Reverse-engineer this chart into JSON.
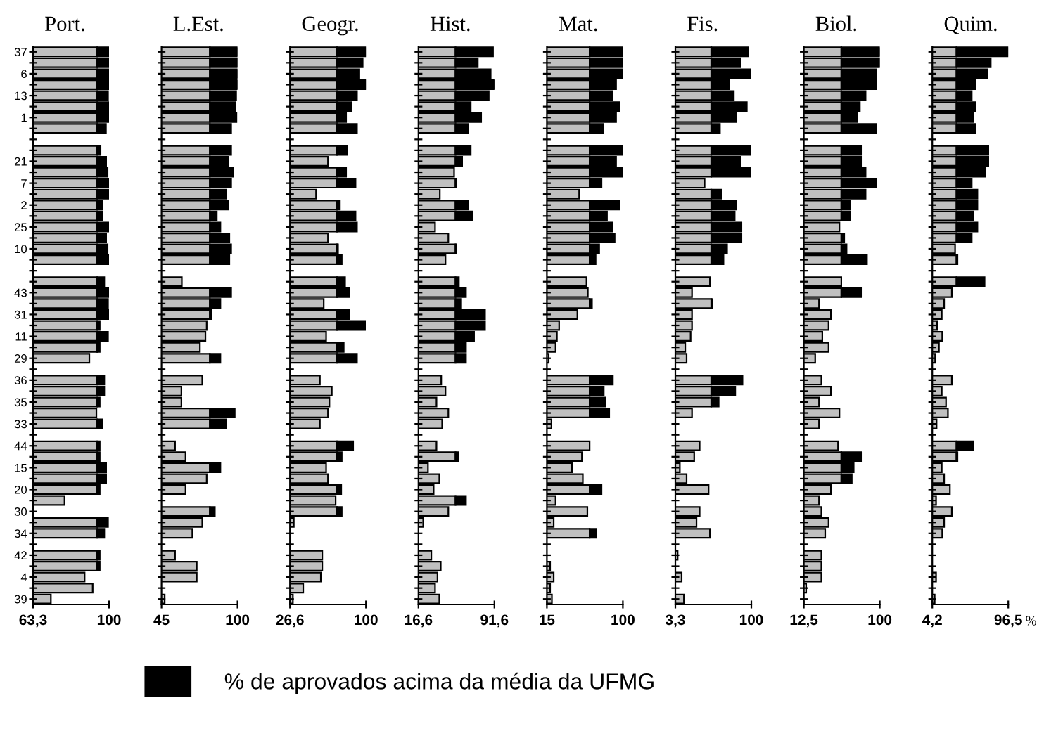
{
  "chart_data": [
    {
      "type": "bar",
      "orientation": "horizontal",
      "stacked": true,
      "title": "Port.",
      "legend": "bottom",
      "categories": [
        "37",
        null,
        "6",
        null,
        "13",
        null,
        "1",
        null,
        null,
        null,
        "21",
        null,
        "7",
        null,
        "2",
        null,
        "25",
        null,
        "10",
        null,
        null,
        null,
        "43",
        null,
        "31",
        null,
        "11",
        null,
        "29",
        null,
        "36",
        null,
        "35",
        null,
        "33",
        null,
        "44",
        null,
        "15",
        null,
        "20",
        null,
        "30",
        null,
        "34",
        null,
        "42",
        null,
        "4",
        null,
        "39"
      ],
      "xlim": [
        63.3,
        100
      ],
      "xticks": [
        {
          "value": 63.3,
          "label": "63,3"
        },
        100
      ],
      "series": [
        {
          "color": "#c0c0c0",
          "values": [
            94.3,
            94.3,
            94.3,
            94.3,
            94.3,
            94.3,
            94.3,
            94.3,
            null,
            94.3,
            94.3,
            94.3,
            94.3,
            94.3,
            94.3,
            94.3,
            94.3,
            94.3,
            94.3,
            94.3,
            null,
            94.3,
            94.3,
            94.3,
            94.3,
            94.3,
            94.3,
            94.3,
            90.5,
            null,
            94.3,
            94.3,
            94.3,
            93.9,
            94.3,
            null,
            94.3,
            94.3,
            94.3,
            94.3,
            94.3,
            78.5,
            null,
            94.3,
            94.3,
            null,
            94.3,
            94.3,
            88.2,
            92.1,
            71.9
          ]
        },
        {
          "name": "% de aprovados acima da média da UFMG",
          "color": "#000000",
          "base": [
            94.3,
            94.3,
            94.3,
            94.3,
            94.3,
            94.3,
            94.3,
            94.3,
            null,
            94.3,
            94.3,
            94.3,
            94.3,
            94.3,
            94.3,
            94.3,
            94.3,
            94.3,
            94.3,
            94.3,
            null,
            94.3,
            94.3,
            94.3,
            94.3,
            94.3,
            94.3,
            94.3,
            null,
            null,
            94.3,
            94.3,
            94.3,
            null,
            94.3,
            null,
            94.3,
            94.3,
            94.3,
            94.3,
            94.3,
            null,
            null,
            94.3,
            94.3,
            null,
            94.3,
            94.3,
            null,
            null,
            null
          ],
          "values": [
            5.7,
            5.7,
            5.7,
            5.7,
            5.2,
            5.7,
            5.7,
            4.2,
            null,
            1.6,
            4.3,
            5,
            5.7,
            5.7,
            2.5,
            2.5,
            5.7,
            4.3,
            5,
            5.7,
            null,
            3.4,
            5.7,
            5.2,
            5.7,
            1.2,
            5.2,
            1.2,
            null,
            null,
            3.4,
            3.4,
            1.2,
            null,
            2.5,
            null,
            1.2,
            1.2,
            4.3,
            4.3,
            1.2,
            null,
            null,
            5.2,
            3.4,
            null,
            1.2,
            1.2,
            null,
            null,
            null
          ]
        }
      ]
    },
    {
      "type": "bar",
      "orientation": "horizontal",
      "stacked": true,
      "title": "L.Est.",
      "tick_labels": "x",
      "categories": [
        "37",
        null,
        "6",
        null,
        "13",
        null,
        "1",
        null,
        null,
        null,
        "21",
        null,
        "7",
        null,
        "2",
        null,
        "25",
        null,
        "10",
        null,
        null,
        null,
        "43",
        null,
        "31",
        null,
        "11",
        null,
        "29",
        null,
        "36",
        null,
        "35",
        null,
        "33",
        null,
        "44",
        null,
        "15",
        null,
        "20",
        null,
        "30",
        null,
        "34",
        null,
        "42",
        null,
        "4",
        null,
        "39"
      ],
      "xlim": [
        45,
        100
      ],
      "xticks": [
        45,
        100
      ],
      "series": [
        {
          "color": "#c0c0c0",
          "values": [
            80,
            80,
            80,
            80,
            80,
            80,
            80,
            80,
            null,
            80,
            80,
            80,
            80,
            80,
            80,
            80,
            80,
            80,
            80,
            80,
            null,
            59.7,
            80,
            80,
            80,
            77.7,
            76.8,
            72.8,
            80,
            null,
            74.5,
            59.4,
            59.4,
            80,
            80,
            null,
            54.8,
            62.4,
            80,
            77.7,
            62.4,
            null,
            80,
            74.5,
            67.3,
            null,
            54.8,
            70.5,
            70.5,
            null,
            47.3
          ]
        },
        {
          "color": "#000000",
          "base": [
            80,
            80,
            80,
            80,
            80,
            80,
            80,
            80,
            null,
            80,
            80,
            80,
            80,
            80,
            80,
            80,
            80,
            80,
            80,
            80,
            null,
            null,
            80,
            80,
            80,
            null,
            null,
            null,
            80,
            null,
            null,
            null,
            null,
            80,
            80,
            null,
            null,
            null,
            80,
            null,
            null,
            null,
            80,
            null,
            null,
            null,
            null,
            null,
            null,
            null,
            null
          ],
          "values": [
            20,
            20,
            20,
            20,
            19,
            18.4,
            19.3,
            15.4,
            null,
            15.4,
            13.1,
            16.7,
            15.4,
            11.5,
            13.1,
            5,
            7.6,
            14.1,
            15.4,
            14.1,
            null,
            null,
            15.4,
            7.6,
            1,
            null,
            null,
            null,
            7.6,
            null,
            null,
            null,
            null,
            18,
            11.5,
            null,
            null,
            null,
            7.6,
            null,
            null,
            null,
            3.6,
            null,
            null,
            null,
            null,
            null,
            null,
            null,
            null
          ]
        }
      ]
    },
    {
      "type": "bar",
      "orientation": "horizontal",
      "stacked": true,
      "title": "Geogr.",
      "tick_labels": "x",
      "categories": [
        "37",
        null,
        "6",
        null,
        "13",
        null,
        "1",
        null,
        null,
        null,
        "21",
        null,
        "7",
        null,
        "2",
        null,
        "25",
        null,
        "10",
        null,
        null,
        null,
        "43",
        null,
        "31",
        null,
        "11",
        null,
        "29",
        null,
        "36",
        null,
        "35",
        null,
        "33",
        null,
        "44",
        null,
        "15",
        null,
        "20",
        null,
        "30",
        null,
        "34",
        null,
        "42",
        null,
        "4",
        null,
        "39"
      ],
      "xlim": [
        26.6,
        100
      ],
      "xticks": [
        {
          "value": 26.6,
          "label": "26,6"
        },
        100
      ],
      "series": [
        {
          "color": "#c0c0c0",
          "values": [
            72,
            72,
            72,
            72,
            72,
            72,
            72,
            72,
            null,
            72,
            63.3,
            72,
            72,
            51.8,
            72,
            72,
            72,
            63.3,
            72,
            72,
            null,
            72,
            72,
            59.2,
            72,
            72,
            61.5,
            72,
            72,
            null,
            55.5,
            67,
            64.7,
            63.3,
            55.5,
            null,
            72,
            72,
            61.5,
            63.3,
            72,
            70.7,
            72,
            30.3,
            null,
            null,
            57.8,
            57.8,
            56.4,
            39.4,
            29.4
          ]
        },
        {
          "color": "#000000",
          "base": [
            72,
            72,
            72,
            72,
            72,
            72,
            72,
            72,
            null,
            72,
            null,
            72,
            72,
            null,
            72,
            72,
            72,
            null,
            72,
            72,
            null,
            72,
            72,
            null,
            72,
            72,
            null,
            72,
            72,
            null,
            null,
            null,
            null,
            null,
            null,
            null,
            72,
            72,
            null,
            null,
            72,
            null,
            72,
            null,
            null,
            null,
            null,
            null,
            null,
            null,
            null
          ],
          "values": [
            28,
            24.8,
            21.6,
            28,
            19.3,
            13.8,
            8.8,
            19.3,
            null,
            10.1,
            null,
            8.8,
            17.9,
            null,
            2.8,
            17.9,
            19.3,
            null,
            1,
            4.6,
            null,
            7.8,
            12,
            null,
            12,
            27.1,
            null,
            6.5,
            19.3,
            null,
            null,
            null,
            null,
            null,
            null,
            null,
            15.6,
            4.6,
            null,
            null,
            4.1,
            null,
            4.6,
            null,
            null,
            null,
            null,
            null,
            null,
            null,
            null
          ]
        }
      ]
    },
    {
      "type": "bar",
      "orientation": "horizontal",
      "stacked": true,
      "title": "Hist.",
      "tick_labels": "x",
      "categories": [
        "37",
        null,
        "6",
        null,
        "13",
        null,
        "1",
        null,
        null,
        null,
        "21",
        null,
        "7",
        null,
        "2",
        null,
        "25",
        null,
        "10",
        null,
        null,
        null,
        "43",
        null,
        "31",
        null,
        "11",
        null,
        "29",
        null,
        "36",
        null,
        "35",
        null,
        "33",
        null,
        "44",
        null,
        "15",
        null,
        "20",
        null,
        "30",
        null,
        "34",
        null,
        "42",
        null,
        "4",
        null,
        "39"
      ],
      "xlim": [
        16.6,
        91.6
      ],
      "xticks": [
        {
          "value": 16.6,
          "label": "16,6"
        },
        {
          "value": 91.6,
          "label": "91,6"
        }
      ],
      "series": [
        {
          "color": "#c0c0c0",
          "values": [
            53.2,
            53.2,
            53.2,
            53.2,
            53.2,
            53.2,
            53.2,
            53.2,
            null,
            53.2,
            53.2,
            51.8,
            53.2,
            37.7,
            53.2,
            53.2,
            33,
            46.1,
            53.2,
            43.3,
            null,
            53.2,
            53.2,
            53.2,
            53.2,
            53.2,
            53.2,
            53.2,
            53.2,
            null,
            39.1,
            43.3,
            34.4,
            46.1,
            40,
            null,
            34.4,
            53.2,
            26,
            37.2,
            31.6,
            53.2,
            46.1,
            21.3,
            null,
            null,
            29.3,
            38.6,
            35.4,
            33,
            37.2
          ]
        },
        {
          "color": "#000000",
          "base": [
            53.2,
            53.2,
            53.2,
            53.2,
            53.2,
            53.2,
            53.2,
            53.2,
            null,
            53.2,
            53.2,
            null,
            53.2,
            null,
            53.2,
            53.2,
            null,
            null,
            53.2,
            null,
            null,
            53.2,
            53.2,
            53.2,
            53.2,
            53.2,
            53.2,
            53.2,
            53.2,
            null,
            null,
            null,
            null,
            null,
            null,
            null,
            null,
            53.2,
            null,
            null,
            null,
            53.2,
            null,
            null,
            null,
            null,
            null,
            null,
            null,
            null,
            null
          ],
          "values": [
            37,
            22,
            34.7,
            38.4,
            32.8,
            15,
            25.3,
            12.6,
            null,
            15,
            6.5,
            null,
            0.9,
            null,
            12.6,
            16.4,
            null,
            null,
            0.9,
            null,
            null,
            3.3,
            10.3,
            5.6,
            29.1,
            29.1,
            18.3,
            10.3,
            10.3,
            null,
            null,
            null,
            null,
            null,
            null,
            null,
            null,
            2.8,
            null,
            null,
            null,
            10.3,
            null,
            null,
            null,
            null,
            null,
            null,
            null,
            null,
            null
          ]
        }
      ]
    },
    {
      "type": "bar",
      "orientation": "horizontal",
      "stacked": true,
      "title": "Mat.",
      "tick_labels": "x",
      "categories": [
        "37",
        null,
        "6",
        null,
        "13",
        null,
        "1",
        null,
        null,
        null,
        "21",
        null,
        "7",
        null,
        "2",
        null,
        "25",
        null,
        "10",
        null,
        null,
        null,
        "43",
        null,
        "31",
        null,
        "11",
        null,
        "29",
        null,
        "36",
        null,
        "35",
        null,
        "33",
        null,
        "44",
        null,
        "15",
        null,
        "20",
        null,
        "30",
        null,
        "34",
        null,
        "42",
        null,
        "4",
        null,
        "39"
      ],
      "xlim": [
        15,
        100
      ],
      "xticks": [
        15,
        100
      ],
      "series": [
        {
          "color": "#c0c0c0",
          "values": [
            62.8,
            62.8,
            62.8,
            62.8,
            62.8,
            62.8,
            62.8,
            62.8,
            null,
            62.8,
            62.8,
            62.8,
            62.8,
            51.1,
            62.8,
            62.8,
            62.8,
            62.8,
            62.8,
            62.8,
            null,
            59.3,
            60.8,
            62.8,
            49.1,
            28.7,
            26.2,
            24.7,
            17,
            null,
            62.8,
            62.8,
            62.8,
            62.8,
            20.1,
            null,
            62.8,
            54.2,
            43,
            55.2,
            62.8,
            24.7,
            60.3,
            22.6,
            62.8,
            null,
            null,
            18.6,
            22.6,
            18.6,
            20.6
          ]
        },
        {
          "color": "#000000",
          "base": [
            62.8,
            62.8,
            62.8,
            62.8,
            62.8,
            62.8,
            62.8,
            62.8,
            null,
            62.8,
            62.8,
            62.8,
            62.8,
            null,
            62.8,
            62.8,
            62.8,
            62.8,
            62.8,
            62.8,
            null,
            null,
            null,
            62.8,
            null,
            null,
            null,
            null,
            null,
            null,
            62.8,
            62.8,
            62.8,
            62.8,
            null,
            null,
            null,
            null,
            null,
            null,
            62.8,
            null,
            null,
            null,
            62.8,
            null,
            null,
            null,
            null,
            null,
            null
          ],
          "values": [
            37.2,
            37.2,
            37.2,
            29.6,
            25.5,
            33.6,
            29.6,
            15.3,
            null,
            37.2,
            29.6,
            37.2,
            13.3,
            null,
            33.6,
            19.4,
            25.5,
            28,
            10.7,
            6.7,
            null,
            null,
            null,
            2.6,
            null,
            null,
            null,
            null,
            null,
            null,
            26,
            15.8,
            17.9,
            21.9,
            null,
            null,
            null,
            null,
            null,
            null,
            13.3,
            null,
            null,
            null,
            6.9,
            null,
            null,
            null,
            null,
            null,
            null
          ]
        }
      ]
    },
    {
      "type": "bar",
      "orientation": "horizontal",
      "stacked": true,
      "title": "Fis.",
      "tick_labels": "x",
      "categories": [
        "37",
        null,
        "6",
        null,
        "13",
        null,
        "1",
        null,
        null,
        null,
        "21",
        null,
        "7",
        null,
        "2",
        null,
        "25",
        null,
        "10",
        null,
        null,
        null,
        "43",
        null,
        "31",
        null,
        "11",
        null,
        "29",
        null,
        "36",
        null,
        "35",
        null,
        "33",
        null,
        "44",
        null,
        "15",
        null,
        "20",
        null,
        "30",
        null,
        "34",
        null,
        "42",
        null,
        "4",
        null,
        "39"
      ],
      "xlim": [
        3.3,
        100
      ],
      "xticks": [
        {
          "value": 3.3,
          "label": "3,3"
        },
        100
      ],
      "series": [
        {
          "color": "#c0c0c0",
          "values": [
            49,
            49,
            49,
            49,
            49,
            49,
            49,
            49,
            null,
            49,
            49,
            49,
            40.5,
            49,
            49,
            49,
            49,
            49,
            49,
            49,
            null,
            47.3,
            24.5,
            49,
            24.5,
            24.5,
            22.7,
            15.9,
            17.6,
            null,
            49,
            49,
            49,
            24.5,
            null,
            null,
            34.2,
            27.3,
            9,
            17.6,
            45.6,
            null,
            34.2,
            30.2,
            47.3,
            null,
            6.2,
            null,
            11.3,
            null,
            14.2
          ]
        },
        {
          "color": "#000000",
          "base": [
            49,
            49,
            49,
            49,
            49,
            49,
            49,
            49,
            null,
            49,
            49,
            49,
            null,
            49,
            49,
            49,
            49,
            49,
            49,
            49,
            null,
            null,
            null,
            49,
            null,
            null,
            null,
            null,
            null,
            null,
            49,
            49,
            49,
            null,
            null,
            null,
            null,
            null,
            null,
            null,
            null,
            null,
            null,
            null,
            null,
            null,
            null,
            null,
            null,
            null,
            null
          ],
          "values": [
            47,
            36.7,
            51,
            22.4,
            28.7,
            45.2,
            31.5,
            11,
            null,
            51,
            36.7,
            51,
            null,
            12.6,
            31.5,
            29.8,
            38.4,
            38.4,
            20.1,
            15.5,
            null,
            null,
            null,
            1.2,
            null,
            null,
            null,
            null,
            null,
            null,
            39.7,
            30.5,
            9.4,
            null,
            null,
            null,
            null,
            null,
            null,
            null,
            null,
            null,
            null,
            null,
            null,
            null,
            null,
            null,
            null,
            null,
            null
          ]
        }
      ]
    },
    {
      "type": "bar",
      "orientation": "horizontal",
      "stacked": true,
      "title": "Biol.",
      "tick_labels": "x",
      "categories": [
        "37",
        null,
        "6",
        null,
        "13",
        null,
        "1",
        null,
        null,
        null,
        "21",
        null,
        "7",
        null,
        "2",
        null,
        "25",
        null,
        "10",
        null,
        null,
        null,
        "43",
        null,
        "31",
        null,
        "11",
        null,
        "29",
        null,
        "36",
        null,
        "35",
        null,
        "33",
        null,
        "44",
        null,
        "15",
        null,
        "20",
        null,
        "30",
        null,
        "34",
        null,
        "42",
        null,
        "4",
        null,
        "39"
      ],
      "xlim": [
        12.5,
        100
      ],
      "xticks": [
        {
          "value": 12.5,
          "label": "12,5"
        },
        100
      ],
      "series": [
        {
          "color": "#c0c0c0",
          "values": [
            55.7,
            55.7,
            55.7,
            55.7,
            55.7,
            55.7,
            55.7,
            55.7,
            null,
            55.7,
            55.7,
            55.7,
            55.7,
            55.7,
            55.7,
            55.7,
            53.5,
            55.7,
            55.7,
            55.7,
            null,
            55.7,
            55.7,
            30,
            43.7,
            41,
            33.8,
            41,
            25.6,
            null,
            32.7,
            43.7,
            30,
            53.5,
            30,
            null,
            51.9,
            55.7,
            55.7,
            55.7,
            43.7,
            30,
            32.7,
            41,
            37.1,
            null,
            32.7,
            32.7,
            32.7,
            15.2,
            null
          ]
        },
        {
          "color": "#000000",
          "base": [
            55.7,
            55.7,
            55.7,
            55.7,
            55.7,
            55.7,
            55.7,
            55.7,
            null,
            55.7,
            55.7,
            55.7,
            55.7,
            55.7,
            55.7,
            55.7,
            null,
            55.7,
            55.7,
            55.7,
            null,
            null,
            55.7,
            null,
            null,
            null,
            null,
            null,
            null,
            null,
            null,
            null,
            null,
            null,
            null,
            null,
            null,
            55.7,
            55.7,
            55.7,
            null,
            null,
            null,
            null,
            null,
            null,
            null,
            null,
            null,
            null,
            null
          ],
          "values": [
            44.3,
            44.3,
            40.5,
            40.5,
            27.9,
            21.3,
            18.6,
            40.5,
            null,
            23.5,
            23.5,
            27.9,
            40.5,
            27.9,
            9.9,
            9.9,
            null,
            3.3,
            6,
            29.5,
            null,
            null,
            23.5,
            null,
            null,
            null,
            null,
            null,
            null,
            null,
            null,
            null,
            null,
            null,
            null,
            null,
            null,
            23.5,
            14.2,
            12,
            null,
            null,
            null,
            null,
            null,
            null,
            null,
            null,
            null,
            null,
            null
          ]
        }
      ]
    },
    {
      "type": "bar",
      "orientation": "horizontal",
      "stacked": true,
      "title": "Quim.",
      "tick_labels": "x",
      "xlabel": "%",
      "categories": [
        "37",
        null,
        "6",
        null,
        "13",
        null,
        "1",
        null,
        null,
        null,
        "21",
        null,
        "7",
        null,
        "2",
        null,
        "25",
        null,
        "10",
        null,
        null,
        null,
        "43",
        null,
        "31",
        null,
        "11",
        null,
        "29",
        null,
        "36",
        null,
        "35",
        null,
        "33",
        null,
        "44",
        null,
        "15",
        null,
        "20",
        null,
        "30",
        null,
        "34",
        null,
        "42",
        null,
        "4",
        null,
        "39"
      ],
      "xlim": [
        4.2,
        96.5
      ],
      "xticks": [
        {
          "value": 4.2,
          "label": "4,2"
        },
        {
          "value": 96.5,
          "label": "96,5"
        }
      ],
      "series": [
        {
          "color": "#c0c0c0",
          "values": [
            33.6,
            33.6,
            33.6,
            33.6,
            33.6,
            33.6,
            33.6,
            33.6,
            null,
            33.6,
            33.6,
            33.6,
            33.6,
            33.6,
            33.6,
            33.6,
            33.6,
            33.6,
            31.9,
            33.6,
            null,
            33.6,
            27.9,
            18.6,
            15.7,
            10,
            16.3,
            12.3,
            7.7,
            null,
            27.9,
            15.7,
            20.9,
            23.2,
            9.4,
            null,
            33.6,
            33.6,
            15.7,
            18.6,
            25.6,
            8.8,
            27.9,
            18.6,
            16.3,
            null,
            null,
            null,
            8.8,
            null,
            7.1
          ]
        },
        {
          "color": "#000000",
          "base": [
            33.6,
            33.6,
            33.6,
            33.6,
            33.6,
            33.6,
            33.6,
            33.6,
            null,
            33.6,
            33.6,
            33.6,
            33.6,
            33.6,
            33.6,
            33.6,
            33.6,
            33.6,
            null,
            33.6,
            null,
            33.6,
            null,
            null,
            null,
            null,
            null,
            null,
            null,
            null,
            null,
            null,
            null,
            null,
            null,
            null,
            33.6,
            33.6,
            null,
            null,
            null,
            null,
            null,
            null,
            null,
            null,
            null,
            null,
            null,
            null,
            null
          ],
          "values": [
            62.9,
            41.6,
            37,
            22.5,
            18.5,
            22.5,
            20.2,
            22.5,
            null,
            38.7,
            38.7,
            34.6,
            18.5,
            25.4,
            25.4,
            20.2,
            25.4,
            18.5,
            null,
            1.2,
            null,
            34.1,
            null,
            null,
            null,
            null,
            null,
            null,
            null,
            null,
            null,
            null,
            null,
            null,
            null,
            null,
            20.2,
            1.2,
            null,
            null,
            null,
            null,
            null,
            null,
            null,
            null,
            null,
            null,
            null,
            null,
            null
          ]
        }
      ]
    }
  ]
}
